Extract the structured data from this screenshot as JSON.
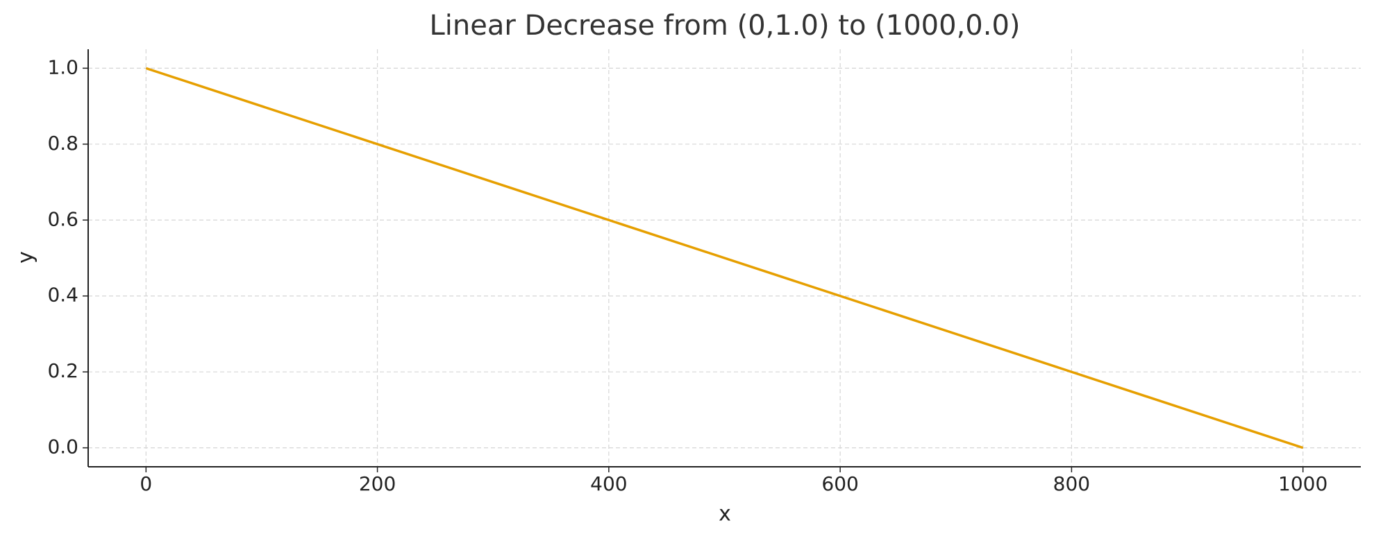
{
  "chart_data": {
    "type": "line",
    "title": "Linear Decrease from (0,1.0) to (1000,0.0)",
    "x_label": "x",
    "y_label": "y",
    "x": [
      0,
      1000
    ],
    "values": [
      1.0,
      0.0
    ],
    "color": "#e69f00",
    "xlim": [
      -50,
      1050
    ],
    "ylim": [
      -0.05,
      1.05
    ],
    "xticks": [
      0,
      200,
      400,
      600,
      800,
      1000
    ],
    "yticks": [
      {
        "value": 0,
        "label": "0.0"
      },
      0.2,
      0.4,
      0.6,
      0.8,
      {
        "value": 1,
        "label": "1.0"
      }
    ],
    "grid": true
  }
}
